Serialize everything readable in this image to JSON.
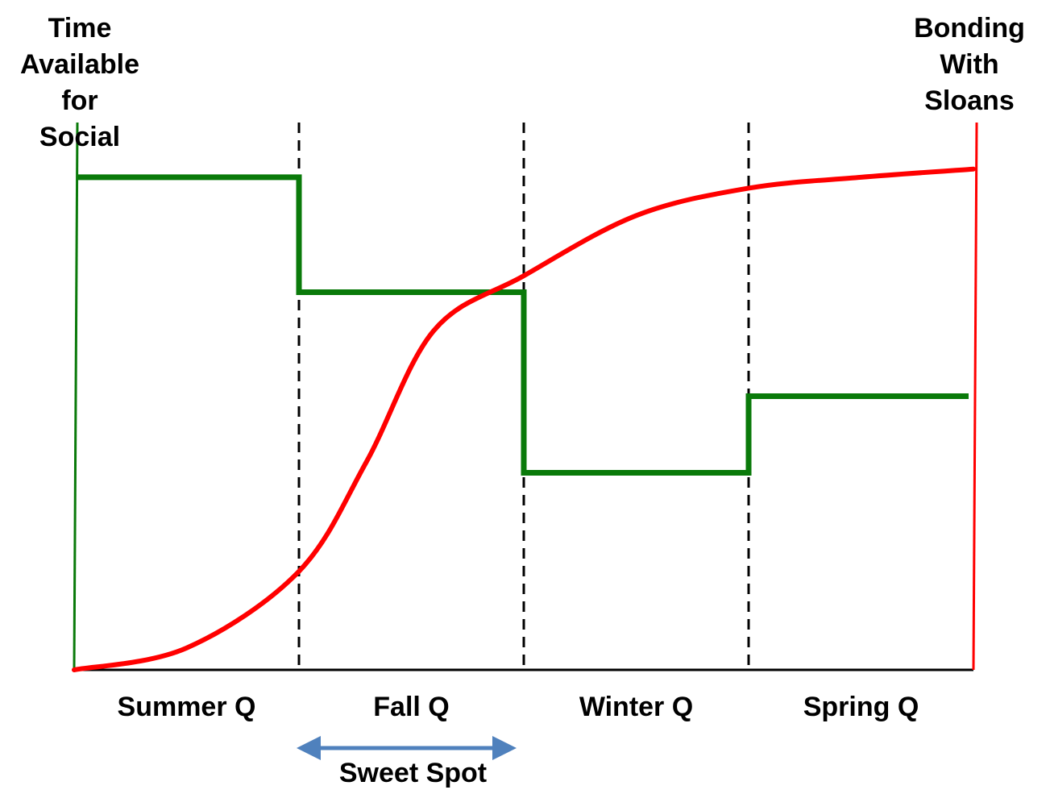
{
  "chart_data": {
    "type": "line",
    "left_axis_label": [
      "Time",
      "Available",
      "for",
      "Social"
    ],
    "right_axis_label": [
      "Bonding",
      "With",
      "Sloans"
    ],
    "categories": [
      "Summer Q",
      "Fall Q",
      "Winter Q",
      "Spring Q"
    ],
    "annotation": "Sweet Spot",
    "annotation_span": [
      1,
      2
    ],
    "dividers": [
      1,
      2,
      3
    ],
    "xlim": [
      0,
      4
    ],
    "ylim": [
      0,
      1
    ],
    "series": [
      {
        "color": "#0a7a0a",
        "style": "step",
        "axis": "left",
        "values": [
          0.9,
          0.69,
          0.36,
          0.5
        ]
      },
      {
        "color": "#ff0000",
        "style": "curve",
        "axis": "right",
        "points": [
          [
            0.0,
            0.0
          ],
          [
            0.5,
            0.04
          ],
          [
            1.0,
            0.18
          ],
          [
            1.3,
            0.38
          ],
          [
            1.6,
            0.62
          ],
          [
            2.0,
            0.72
          ],
          [
            2.5,
            0.83
          ],
          [
            3.0,
            0.88
          ],
          [
            3.5,
            0.9
          ],
          [
            4.0,
            0.915
          ]
        ]
      }
    ],
    "colors": {
      "left_axis": "#0a7a0a",
      "right_axis": "#ff0000",
      "arrow": "#4f81bd",
      "divider": "#000000"
    }
  }
}
